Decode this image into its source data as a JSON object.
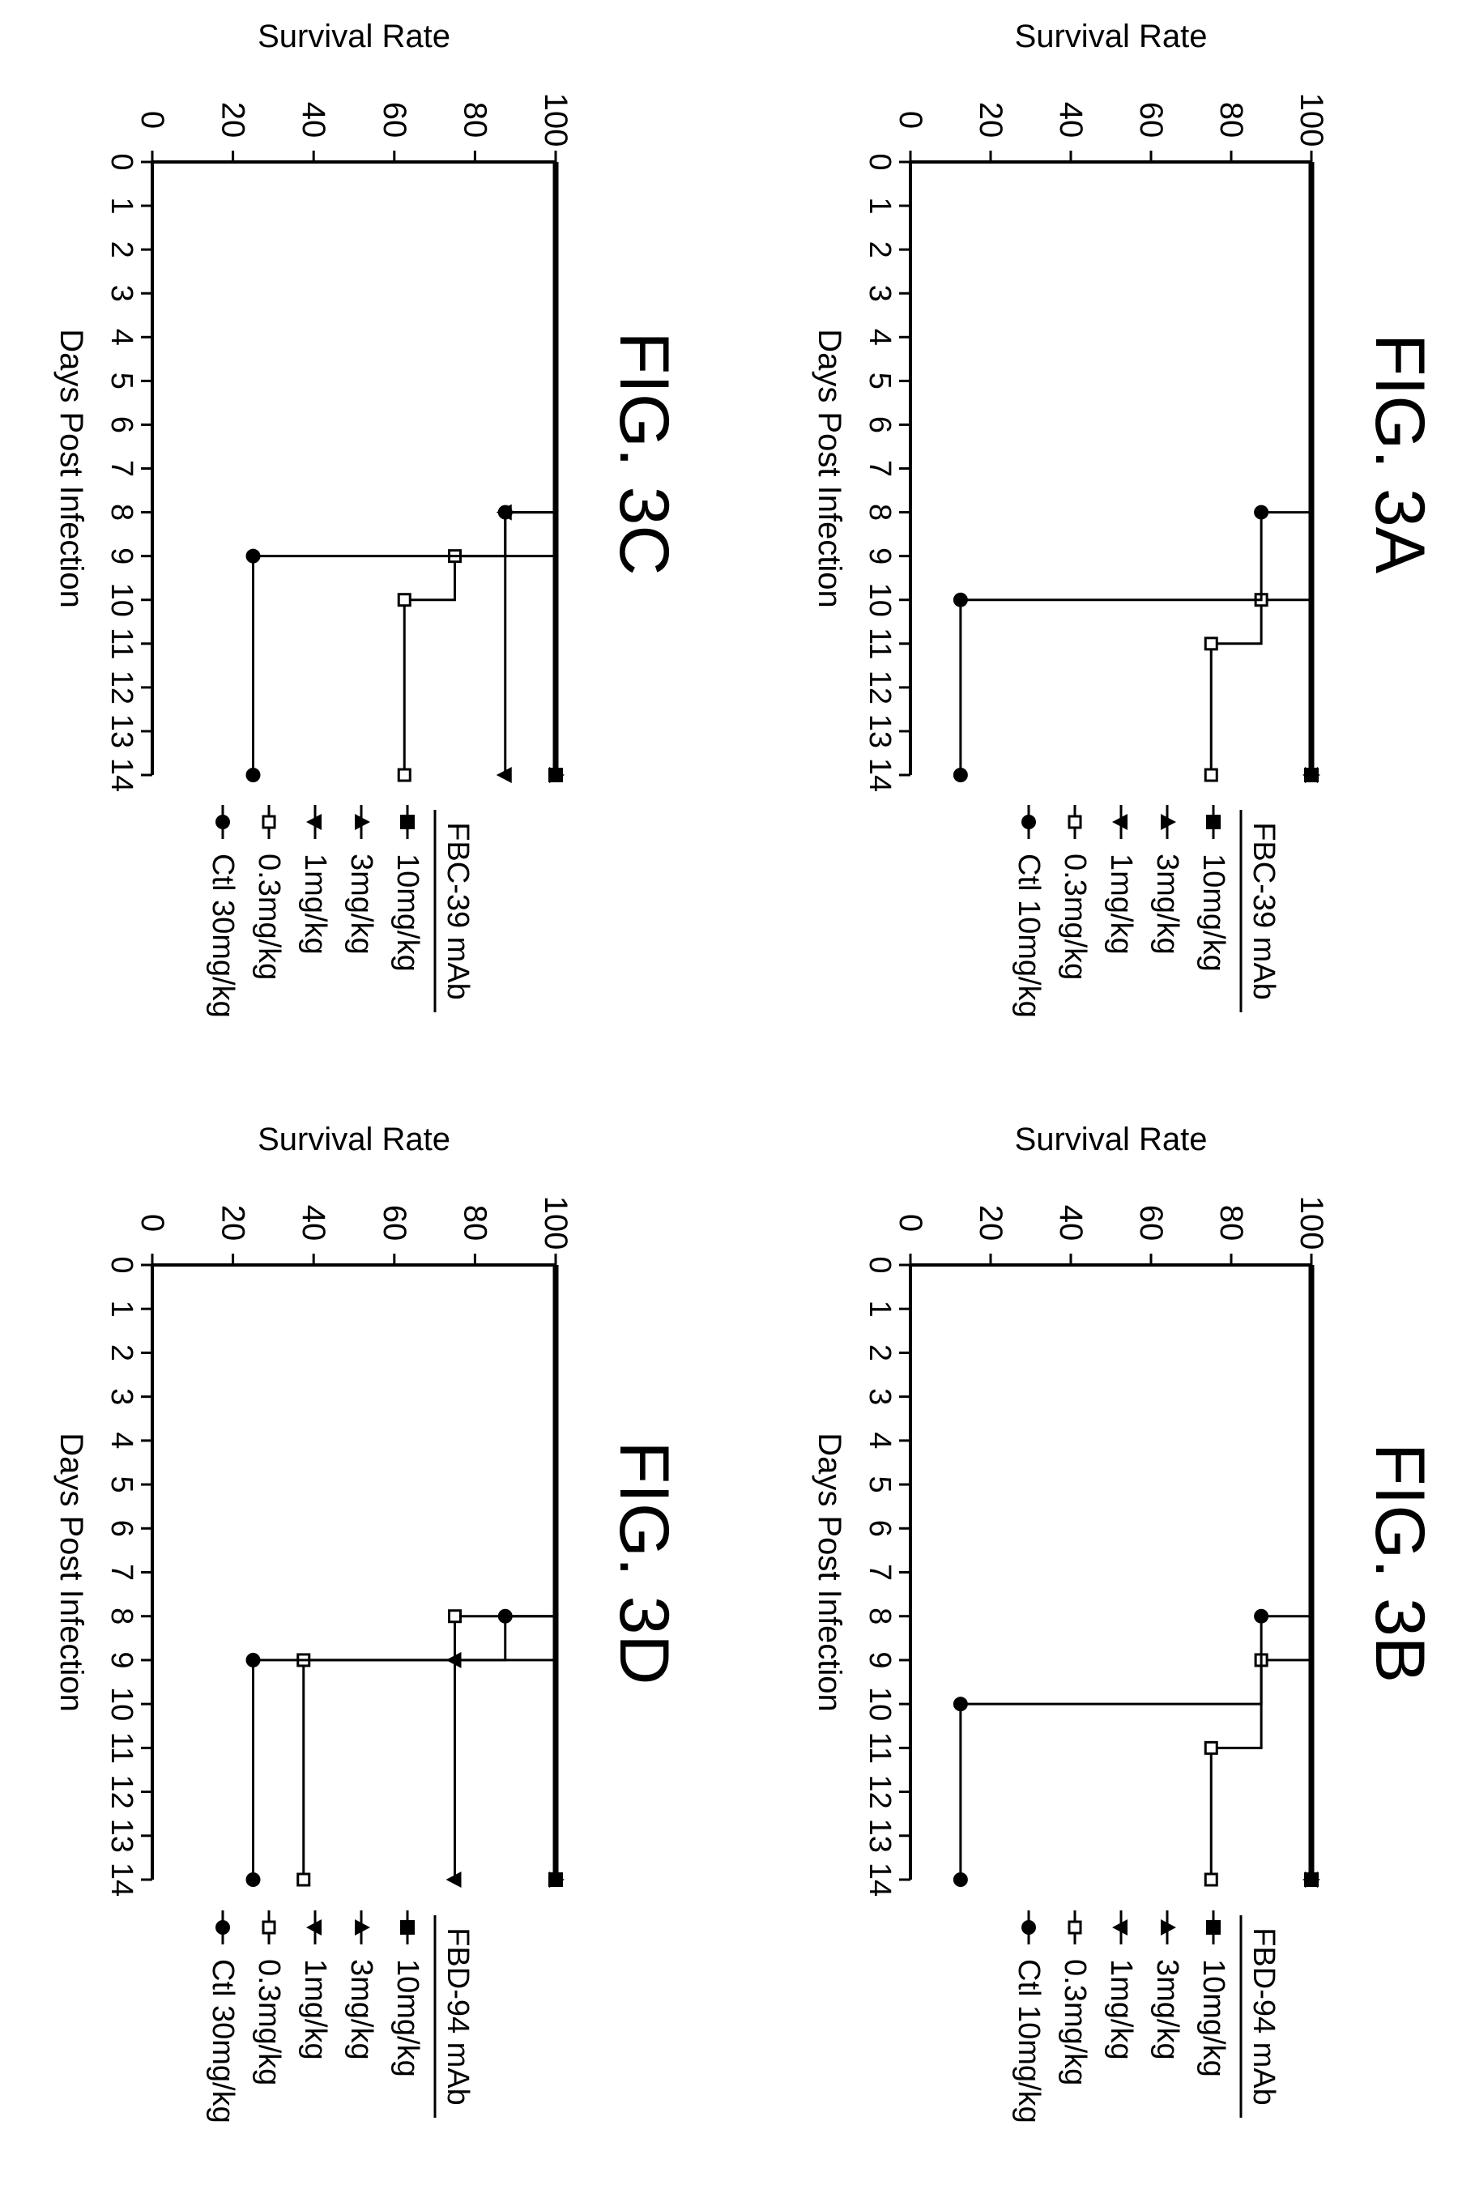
{
  "chart_data": [
    {
      "type": "line",
      "figure_label": "FIG. 3A",
      "xlabel": "Days Post Infection",
      "ylabel": "Survival Rate",
      "xlim": [
        0,
        14
      ],
      "ylim": [
        0,
        100
      ],
      "x_ticks": [
        "0",
        "1",
        "2",
        "3",
        "4",
        "5",
        "6",
        "7",
        "8",
        "9",
        "10",
        "11",
        "12",
        "13",
        "14"
      ],
      "y_ticks": [
        "0",
        "20",
        "40",
        "60",
        "80",
        "100"
      ],
      "legend_title": "FBC-39 mAb",
      "legend_placement": "right",
      "series": [
        {
          "name": "10mg/kg",
          "marker": "square-filled",
          "steps": [
            [
              0,
              100
            ],
            [
              14,
              100
            ]
          ],
          "markers": [
            [
              14,
              100
            ]
          ]
        },
        {
          "name": "3mg/kg",
          "marker": "triangle-up",
          "steps": [
            [
              0,
              100
            ],
            [
              14,
              100
            ]
          ],
          "markers": [
            [
              14,
              100
            ]
          ]
        },
        {
          "name": "1mg/kg",
          "marker": "triangle-down",
          "steps": [
            [
              0,
              100
            ],
            [
              14,
              100
            ]
          ],
          "markers": [
            [
              14,
              100
            ]
          ]
        },
        {
          "name": "0.3mg/kg",
          "marker": "square-open",
          "steps": [
            [
              0,
              100
            ],
            [
              10,
              100
            ],
            [
              10,
              87.5
            ],
            [
              11,
              87.5
            ],
            [
              11,
              75
            ],
            [
              14,
              75
            ]
          ],
          "markers": [
            [
              10,
              87.5
            ],
            [
              11,
              75
            ],
            [
              14,
              75
            ]
          ]
        },
        {
          "name": "Ctl 10mg/kg",
          "marker": "circle",
          "steps": [
            [
              0,
              100
            ],
            [
              8,
              100
            ],
            [
              8,
              87.5
            ],
            [
              10,
              87.5
            ],
            [
              10,
              12.5
            ],
            [
              14,
              12.5
            ]
          ],
          "markers": [
            [
              8,
              87.5
            ],
            [
              10,
              12.5
            ],
            [
              14,
              12.5
            ]
          ]
        }
      ]
    },
    {
      "type": "line",
      "figure_label": "FIG. 3B",
      "xlabel": "Days Post Infection",
      "ylabel": "Survival Rate",
      "xlim": [
        0,
        14
      ],
      "ylim": [
        0,
        100
      ],
      "x_ticks": [
        "0",
        "1",
        "2",
        "3",
        "4",
        "5",
        "6",
        "7",
        "8",
        "9",
        "10",
        "11",
        "12",
        "13",
        "14"
      ],
      "y_ticks": [
        "0",
        "20",
        "40",
        "60",
        "80",
        "100"
      ],
      "legend_title": "FBD-94 mAb",
      "legend_placement": "right",
      "series": [
        {
          "name": "10mg/kg",
          "marker": "square-filled",
          "steps": [
            [
              0,
              100
            ],
            [
              14,
              100
            ]
          ],
          "markers": [
            [
              14,
              100
            ]
          ]
        },
        {
          "name": "3mg/kg",
          "marker": "triangle-up",
          "steps": [
            [
              0,
              100
            ],
            [
              14,
              100
            ]
          ],
          "markers": [
            [
              14,
              100
            ]
          ]
        },
        {
          "name": "1mg/kg",
          "marker": "triangle-down",
          "steps": [
            [
              0,
              100
            ],
            [
              14,
              100
            ]
          ],
          "markers": [
            [
              14,
              100
            ]
          ]
        },
        {
          "name": "0.3mg/kg",
          "marker": "square-open",
          "steps": [
            [
              0,
              100
            ],
            [
              9,
              100
            ],
            [
              9,
              87.5
            ],
            [
              11,
              87.5
            ],
            [
              11,
              75
            ],
            [
              14,
              75
            ]
          ],
          "markers": [
            [
              9,
              87.5
            ],
            [
              11,
              75
            ],
            [
              14,
              75
            ]
          ]
        },
        {
          "name": "Ctl 10mg/kg",
          "marker": "circle",
          "steps": [
            [
              0,
              100
            ],
            [
              8,
              100
            ],
            [
              8,
              87.5
            ],
            [
              10,
              87.5
            ],
            [
              10,
              12.5
            ],
            [
              14,
              12.5
            ]
          ],
          "markers": [
            [
              8,
              87.5
            ],
            [
              10,
              12.5
            ],
            [
              14,
              12.5
            ]
          ]
        }
      ]
    },
    {
      "type": "line",
      "figure_label": "FIG. 3C",
      "xlabel": "Days Post Infection",
      "ylabel": "Survival Rate",
      "xlim": [
        0,
        14
      ],
      "ylim": [
        0,
        100
      ],
      "x_ticks": [
        "0",
        "1",
        "2",
        "3",
        "4",
        "5",
        "6",
        "7",
        "8",
        "9",
        "10",
        "11",
        "12",
        "13",
        "14"
      ],
      "y_ticks": [
        "0",
        "20",
        "40",
        "60",
        "80",
        "100"
      ],
      "legend_title": "FBC-39 mAb",
      "legend_placement": "right",
      "series": [
        {
          "name": "10mg/kg",
          "marker": "square-filled",
          "steps": [
            [
              0,
              100
            ],
            [
              14,
              100
            ]
          ],
          "markers": [
            [
              14,
              100
            ]
          ]
        },
        {
          "name": "3mg/kg",
          "marker": "triangle-up",
          "steps": [
            [
              0,
              100
            ],
            [
              14,
              100
            ]
          ],
          "markers": [
            [
              14,
              100
            ]
          ]
        },
        {
          "name": "1mg/kg",
          "marker": "triangle-down",
          "steps": [
            [
              0,
              100
            ],
            [
              8,
              100
            ],
            [
              8,
              87.5
            ],
            [
              14,
              87.5
            ]
          ],
          "markers": [
            [
              8,
              87.5
            ],
            [
              14,
              87.5
            ]
          ]
        },
        {
          "name": "0.3mg/kg",
          "marker": "square-open",
          "steps": [
            [
              0,
              100
            ],
            [
              9,
              100
            ],
            [
              9,
              75
            ],
            [
              10,
              75
            ],
            [
              10,
              62.5
            ],
            [
              14,
              62.5
            ]
          ],
          "markers": [
            [
              9,
              75
            ],
            [
              10,
              62.5
            ],
            [
              14,
              62.5
            ]
          ]
        },
        {
          "name": "Ctl 30mg/kg",
          "marker": "circle",
          "steps": [
            [
              0,
              100
            ],
            [
              8,
              100
            ],
            [
              8,
              87.5
            ],
            [
              9,
              87.5
            ],
            [
              9,
              25
            ],
            [
              14,
              25
            ]
          ],
          "markers": [
            [
              8,
              87.5
            ],
            [
              9,
              25
            ],
            [
              14,
              25
            ]
          ]
        }
      ]
    },
    {
      "type": "line",
      "figure_label": "FIG. 3D",
      "xlabel": "Days Post Infection",
      "ylabel": "Survival Rate",
      "xlim": [
        0,
        14
      ],
      "ylim": [
        0,
        100
      ],
      "x_ticks": [
        "0",
        "1",
        "2",
        "3",
        "4",
        "5",
        "6",
        "7",
        "8",
        "9",
        "10",
        "11",
        "12",
        "13",
        "14"
      ],
      "y_ticks": [
        "0",
        "20",
        "40",
        "60",
        "80",
        "100"
      ],
      "legend_title": "FBD-94 mAb",
      "legend_placement": "right",
      "series": [
        {
          "name": "10mg/kg",
          "marker": "square-filled",
          "steps": [
            [
              0,
              100
            ],
            [
              14,
              100
            ]
          ],
          "markers": [
            [
              14,
              100
            ]
          ]
        },
        {
          "name": "3mg/kg",
          "marker": "triangle-up",
          "steps": [
            [
              0,
              100
            ],
            [
              14,
              100
            ]
          ],
          "markers": [
            [
              14,
              100
            ]
          ]
        },
        {
          "name": "1mg/kg",
          "marker": "triangle-down",
          "steps": [
            [
              0,
              100
            ],
            [
              9,
              100
            ],
            [
              9,
              75
            ],
            [
              14,
              75
            ]
          ],
          "markers": [
            [
              9,
              75
            ],
            [
              14,
              75
            ]
          ]
        },
        {
          "name": "0.3mg/kg",
          "marker": "square-open",
          "steps": [
            [
              0,
              100
            ],
            [
              8,
              100
            ],
            [
              8,
              75
            ],
            [
              9,
              75
            ],
            [
              9,
              37.5
            ],
            [
              14,
              37.5
            ]
          ],
          "markers": [
            [
              8,
              75
            ],
            [
              9,
              37.5
            ],
            [
              14,
              37.5
            ]
          ]
        },
        {
          "name": "Ctl 30mg/kg",
          "marker": "circle",
          "steps": [
            [
              0,
              100
            ],
            [
              8,
              100
            ],
            [
              8,
              87.5
            ],
            [
              9,
              87.5
            ],
            [
              9,
              25
            ],
            [
              14,
              25
            ]
          ],
          "markers": [
            [
              8,
              87.5
            ],
            [
              9,
              25
            ],
            [
              14,
              25
            ]
          ]
        }
      ]
    }
  ]
}
